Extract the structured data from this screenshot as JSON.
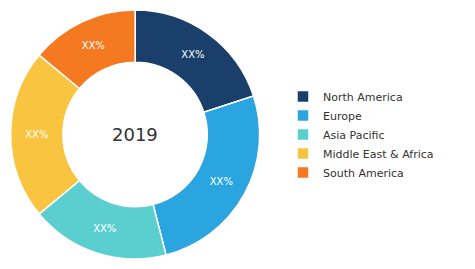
{
  "chart_data": {
    "type": "pie",
    "title": "2019",
    "categories": [
      "North America",
      "Europe",
      "Asia Pacific",
      "Middle East & Africa",
      "South America"
    ],
    "values": [
      20,
      26,
      18,
      22,
      14
    ],
    "value_labels": [
      "XX%",
      "XX%",
      "XX%",
      "XX%",
      "XX%"
    ],
    "colors": [
      "#1b3f6b",
      "#2ba5e0",
      "#5bcfcf",
      "#f9c440",
      "#f47920"
    ],
    "data_labels": true,
    "legend": "right"
  }
}
